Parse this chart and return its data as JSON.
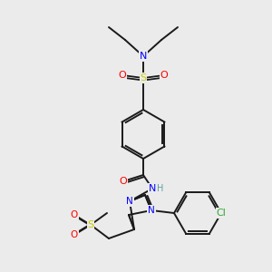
{
  "background_color": "#ebebeb",
  "bond_color": "#1a1a1a",
  "atom_colors": {
    "N": "#0000ff",
    "O": "#ff0000",
    "S": "#cccc00",
    "Cl": "#33aa33",
    "H": "#5f9ea0",
    "C": "#1a1a1a"
  },
  "figsize": [
    3.0,
    3.0
  ],
  "dpi": 100
}
